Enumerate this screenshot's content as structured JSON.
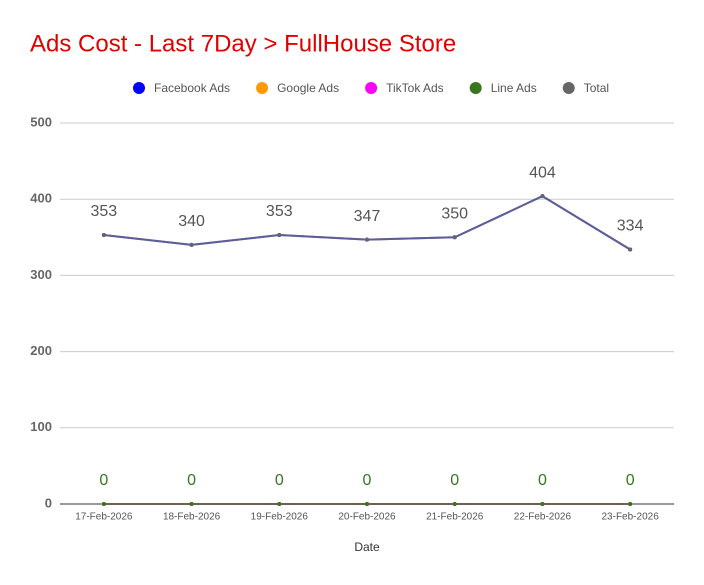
{
  "chart_data": {
    "type": "line",
    "title": "Ads Cost - Last 7Day > FullHouse Store",
    "x_label": "Date",
    "categories": [
      "17-Feb-2026",
      "18-Feb-2026",
      "19-Feb-2026",
      "20-Feb-2026",
      "21-Feb-2026",
      "22-Feb-2026",
      "23-Feb-2026"
    ],
    "series": [
      {
        "name": "Facebook Ads",
        "color": "#0000ff",
        "values": [
          353,
          340,
          353,
          347,
          350,
          404,
          334
        ],
        "show_labels": false
      },
      {
        "name": "Google Ads",
        "color": "#ff9900",
        "values": [
          0,
          0,
          0,
          0,
          0,
          0,
          0
        ],
        "show_labels": false
      },
      {
        "name": "TikTok Ads",
        "color": "#ff00ff",
        "values": [
          0,
          0,
          0,
          0,
          0,
          0,
          0
        ],
        "show_labels": false
      },
      {
        "name": "Line Ads",
        "color": "#38761d",
        "values": [
          0,
          0,
          0,
          0,
          0,
          0,
          0
        ],
        "show_labels": true
      },
      {
        "name": "Total",
        "color": "#666666",
        "values": [
          353,
          340,
          353,
          347,
          350,
          404,
          334
        ],
        "show_labels": true
      }
    ],
    "ylim": [
      0,
      500
    ],
    "yticks": [
      0,
      100,
      200,
      300,
      400,
      500
    ],
    "grid": true,
    "legend": "top"
  }
}
